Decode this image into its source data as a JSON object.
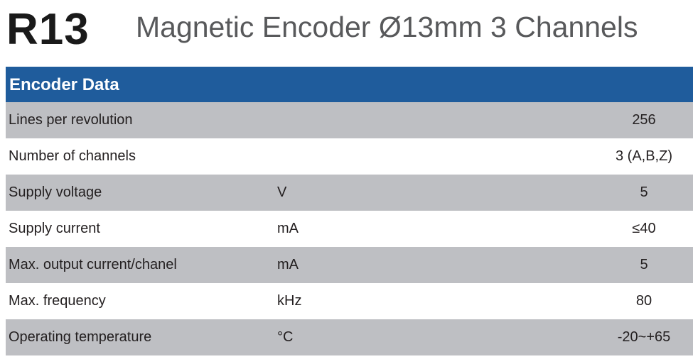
{
  "header": {
    "code": "R13",
    "title": "Magnetic Encoder Ø13mm 3 Channels"
  },
  "table": {
    "title": "Encoder Data",
    "rows": [
      {
        "label": "Lines per revolution",
        "unit": "",
        "value": "256"
      },
      {
        "label": "Number of channels",
        "unit": "",
        "value": "3 (A,B,Z)"
      },
      {
        "label": "Supply voltage",
        "unit": "V",
        "value": "5"
      },
      {
        "label": "Supply current",
        "unit": "mA",
        "value": "≤40"
      },
      {
        "label": "Max. output current/chanel",
        "unit": "mA",
        "value": "5"
      },
      {
        "label": "Max. frequency",
        "unit": "kHz",
        "value": "80"
      },
      {
        "label": "Operating temperature",
        "unit": "°C",
        "value": "-20~+65"
      }
    ]
  },
  "colors": {
    "header": "#1f5c9c",
    "stripe": "#bebfc3"
  }
}
